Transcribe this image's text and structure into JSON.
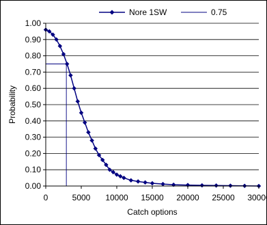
{
  "chart_data": {
    "type": "line",
    "title": "",
    "xlabel": "Catch options",
    "ylabel": "Probability",
    "xlim": [
      0,
      30000
    ],
    "ylim": [
      0,
      1
    ],
    "x_ticks": [
      "0",
      "5000",
      "10000",
      "15000",
      "20000",
      "25000",
      "30000"
    ],
    "y_ticks": [
      "0.00",
      "0.10",
      "0.20",
      "0.30",
      "0.40",
      "0.50",
      "0.60",
      "0.70",
      "0.80",
      "0.90",
      "1.00"
    ],
    "grid": "horizontal",
    "legend_position": "top",
    "series": [
      {
        "name": "Nore 1SW",
        "color": "#000080",
        "marker": "diamond",
        "x": [
          0,
          500,
          1000,
          1500,
          2000,
          2500,
          3000,
          3500,
          4000,
          4500,
          5000,
          5500,
          6000,
          6500,
          7000,
          7500,
          8000,
          8500,
          9000,
          9500,
          10000,
          10500,
          11000,
          12000,
          13000,
          14000,
          15000,
          16500,
          18000,
          20000,
          22000,
          24000,
          26000,
          28000,
          30000
        ],
        "y": [
          0.96,
          0.95,
          0.93,
          0.9,
          0.86,
          0.81,
          0.75,
          0.68,
          0.6,
          0.52,
          0.45,
          0.39,
          0.33,
          0.28,
          0.23,
          0.19,
          0.16,
          0.13,
          0.1,
          0.085,
          0.07,
          0.06,
          0.05,
          0.035,
          0.028,
          0.022,
          0.017,
          0.012,
          0.008,
          0.006,
          0.004,
          0.003,
          0.002,
          0.001,
          0.0
        ]
      },
      {
        "name": "0.75",
        "color": "#000080",
        "marker": "none",
        "x": [
          0,
          2900,
          2900
        ],
        "y": [
          0.75,
          0.75,
          0.0
        ]
      }
    ]
  }
}
